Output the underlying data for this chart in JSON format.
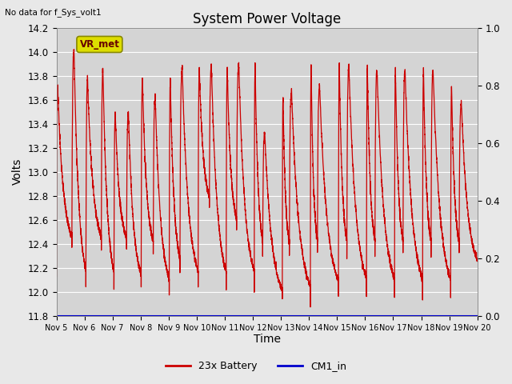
{
  "title": "System Power Voltage",
  "xlabel": "Time",
  "ylabel": "Volts",
  "no_data_text": "No data for f_Sys_volt1",
  "vr_met_label": "VR_met",
  "ylim_left": [
    11.8,
    14.2
  ],
  "ylim_right": [
    0.0,
    1.0
  ],
  "yticks_left": [
    11.8,
    12.0,
    12.2,
    12.4,
    12.6,
    12.8,
    13.0,
    13.2,
    13.4,
    13.6,
    13.8,
    14.0,
    14.2
  ],
  "yticks_right": [
    0.0,
    0.2,
    0.4,
    0.6,
    0.8,
    1.0
  ],
  "xtick_labels": [
    "Nov 5",
    "Nov 6",
    "Nov 7",
    "Nov 8",
    "Nov 9",
    "Nov 10",
    "Nov 11",
    "Nov 12",
    "Nov 13",
    "Nov 14",
    "Nov 15",
    "Nov 16",
    "Nov 17",
    "Nov 18",
    "Nov 19",
    "Nov 20"
  ],
  "xtick_positions": [
    5,
    6,
    7,
    8,
    9,
    10,
    11,
    12,
    13,
    14,
    15,
    16,
    17,
    18,
    19,
    20
  ],
  "battery_color": "#cc0000",
  "cm1_color": "#0000cc",
  "legend_entries": [
    "23x Battery",
    "CM1_in"
  ],
  "background_color": "#e8e8e8",
  "plot_bg_color": "#d4d4d4",
  "grid_color": "#ffffff",
  "figsize": [
    6.4,
    4.8
  ],
  "dpi": 100
}
